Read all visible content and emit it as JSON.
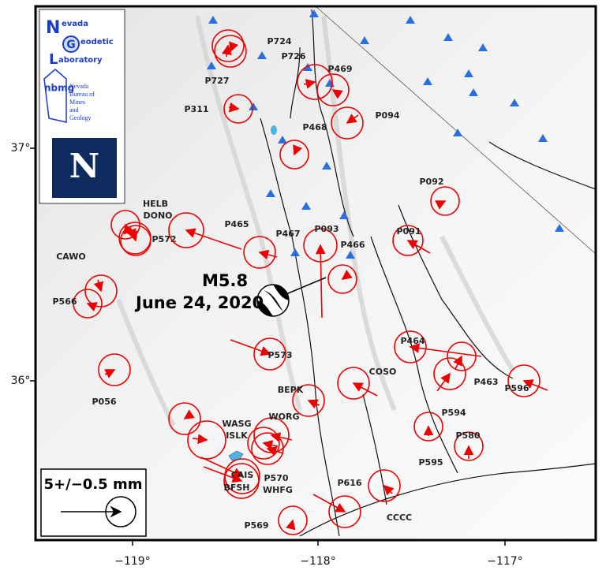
{
  "map": {
    "x_ticks": [
      "−119°",
      "−118°",
      "−117°"
    ],
    "y_ticks": [
      "37°",
      "36°"
    ],
    "event": {
      "magnitude": "M5.8",
      "date": "June 24, 2020"
    },
    "scale_label": "5+/−0.5 mm",
    "logos": {
      "ngl": [
        "evada",
        "eodetic",
        "aboratory"
      ],
      "ngl_initials": [
        "N",
        "G",
        "L"
      ],
      "nbmg": "nbmg",
      "nbmg_name": [
        "Nevada",
        "Bureau of",
        "Mines",
        "and",
        "Geology"
      ],
      "unr": "N"
    },
    "stations": [
      "P724",
      "P727",
      "P726",
      "P469",
      "P311",
      "P094",
      "P468",
      "P092",
      "HELB",
      "DONO",
      "P572",
      "P465",
      "P467",
      "P093",
      "P466",
      "P091",
      "CAWO",
      "P566",
      "P573",
      "P464",
      "P463",
      "P596",
      "P594",
      "COSO",
      "BEPK",
      "P056",
      "WASG",
      "ISLK",
      "WORG",
      "P570",
      "WHFG",
      "CAIS",
      "BFSH",
      "P595",
      "P580",
      "P616",
      "CCCC",
      "P569"
    ]
  }
}
